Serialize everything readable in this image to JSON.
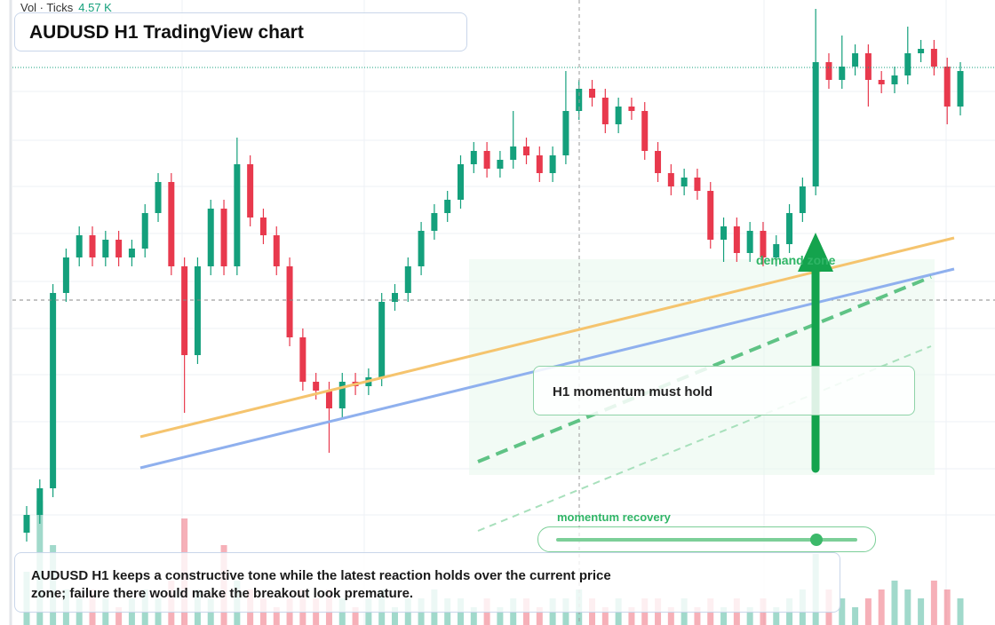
{
  "chart_data": {
    "type": "candlestick",
    "title": "AUDUSD H1 TradingView chart",
    "volume_title": "Vol · Ticks",
    "volume_last": "4.57 K",
    "annotations": {
      "zone": "demand zone",
      "callout": "H1 momentum must hold",
      "slider": "momentum recovery"
    },
    "caption": "AUDUSD H1 keeps a constructive tone while the latest reaction holds over the current price zone; failure there would make the breakout look premature.",
    "ylim": [
      0,
      700
    ],
    "vlim": [
      0,
      14
    ],
    "up_color": "#14a07c",
    "down_color": "#e8394d",
    "open": [
      100,
      120,
      150,
      370,
      410,
      435,
      410,
      430,
      410,
      420,
      460,
      495,
      400,
      300,
      400,
      465,
      400,
      515,
      455,
      435,
      400,
      320,
      270,
      260,
      240,
      270,
      265,
      275,
      360,
      370,
      400,
      440,
      460,
      475,
      515,
      530,
      510,
      520,
      535,
      525,
      505,
      525,
      575,
      600,
      590,
      560,
      580,
      575,
      530,
      505,
      490,
      500,
      485,
      430,
      445,
      415,
      440,
      410,
      425,
      460,
      490,
      630,
      610,
      625,
      640,
      610,
      605,
      615,
      640,
      645,
      625,
      580
    ],
    "high": [
      130,
      160,
      380,
      420,
      445,
      445,
      440,
      440,
      430,
      470,
      505,
      505,
      410,
      410,
      475,
      475,
      545,
      525,
      465,
      445,
      410,
      330,
      280,
      270,
      280,
      280,
      285,
      370,
      380,
      410,
      450,
      470,
      485,
      525,
      540,
      540,
      530,
      575,
      545,
      535,
      535,
      620,
      610,
      610,
      600,
      590,
      590,
      585,
      540,
      515,
      510,
      510,
      495,
      455,
      455,
      450,
      450,
      435,
      470,
      500,
      690,
      640,
      660,
      650,
      650,
      620,
      625,
      670,
      655,
      655,
      635,
      630
    ],
    "low": [
      90,
      110,
      140,
      360,
      400,
      400,
      400,
      400,
      400,
      410,
      450,
      390,
      235,
      290,
      390,
      390,
      390,
      445,
      425,
      390,
      310,
      260,
      250,
      190,
      230,
      255,
      255,
      265,
      350,
      360,
      390,
      430,
      450,
      465,
      505,
      500,
      500,
      510,
      515,
      495,
      495,
      515,
      565,
      580,
      550,
      550,
      565,
      520,
      495,
      480,
      480,
      475,
      420,
      405,
      405,
      405,
      400,
      400,
      415,
      450,
      480,
      600,
      600,
      615,
      580,
      595,
      595,
      605,
      630,
      615,
      560,
      570
    ],
    "close": [
      120,
      150,
      370,
      410,
      435,
      410,
      430,
      410,
      420,
      460,
      495,
      400,
      300,
      400,
      465,
      400,
      515,
      455,
      435,
      400,
      320,
      270,
      260,
      240,
      270,
      265,
      275,
      360,
      370,
      400,
      440,
      460,
      475,
      515,
      530,
      510,
      520,
      535,
      525,
      505,
      525,
      575,
      600,
      590,
      560,
      580,
      575,
      530,
      505,
      490,
      500,
      485,
      430,
      445,
      415,
      440,
      410,
      425,
      460,
      490,
      630,
      610,
      625,
      640,
      610,
      605,
      615,
      640,
      645,
      625,
      580,
      620
    ],
    "volume": [
      6,
      14,
      9,
      4,
      3,
      4,
      3,
      2,
      3,
      4,
      3,
      5,
      12,
      4,
      3,
      9,
      5,
      4,
      3,
      2,
      3,
      4,
      3,
      4,
      3,
      2,
      3,
      4,
      2,
      3,
      3,
      4,
      3,
      3,
      2,
      3,
      2,
      3,
      3,
      2,
      3,
      3,
      4,
      3,
      2,
      3,
      2,
      3,
      3,
      2,
      3,
      2,
      3,
      2,
      3,
      2,
      3,
      2,
      3,
      4,
      8,
      4,
      3,
      2,
      3,
      4,
      5,
      4,
      3,
      5,
      4,
      3
    ]
  }
}
